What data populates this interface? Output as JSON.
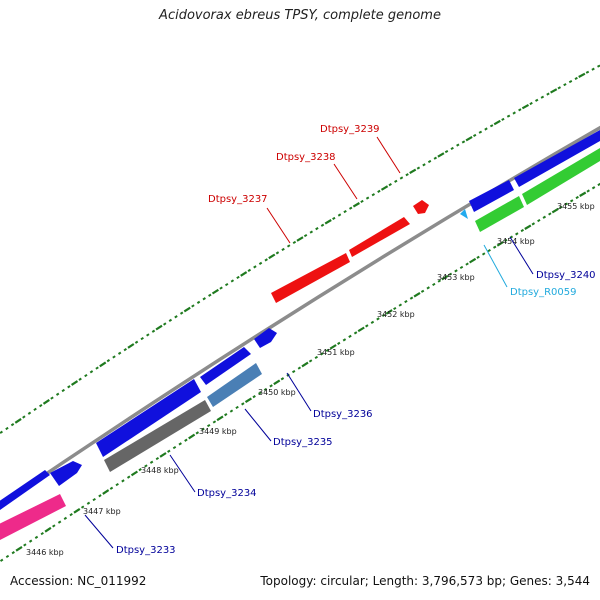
{
  "title": "Acidovorax ebreus TPSY, complete genome",
  "accession": "Accession: NC_011992",
  "topology": "Topology: circular; Length: 3,796,573 bp; Genes: 3,544",
  "colors": {
    "backbone": "#8c8c8c",
    "tick": "#1f7a1f",
    "cds_forward": "#1010dd",
    "cds_reverse_green": "#33cc33",
    "cds_pink": "#ee2a8a",
    "cds_gray": "#666666",
    "cds_steelblue": "#4a7fb5",
    "cds_red": "#ee1111",
    "rna_cyan": "#22aaee",
    "label_blue": "#000099",
    "label_red": "#cc0000",
    "label_cyan": "#22aadd"
  },
  "kbp_ticks": [
    "3446 kbp",
    "3447 kbp",
    "3448 kbp",
    "3449 kbp",
    "3450 kbp",
    "3451 kbp",
    "3452 kbp",
    "3453 kbp",
    "3454 kbp",
    "3455 kbp"
  ],
  "genes": [
    {
      "name": "Dtpsy_3233",
      "color_key": "label_blue"
    },
    {
      "name": "Dtpsy_3234",
      "color_key": "label_blue"
    },
    {
      "name": "Dtpsy_3235",
      "color_key": "label_blue"
    },
    {
      "name": "Dtpsy_3236",
      "color_key": "label_blue"
    },
    {
      "name": "Dtpsy_3237",
      "color_key": "label_red"
    },
    {
      "name": "Dtpsy_3238",
      "color_key": "label_red"
    },
    {
      "name": "Dtpsy_3239",
      "color_key": "label_red"
    },
    {
      "name": "Dtpsy_R0059",
      "color_key": "label_cyan"
    },
    {
      "name": "Dtpsy_3240",
      "color_key": "label_blue"
    }
  ]
}
